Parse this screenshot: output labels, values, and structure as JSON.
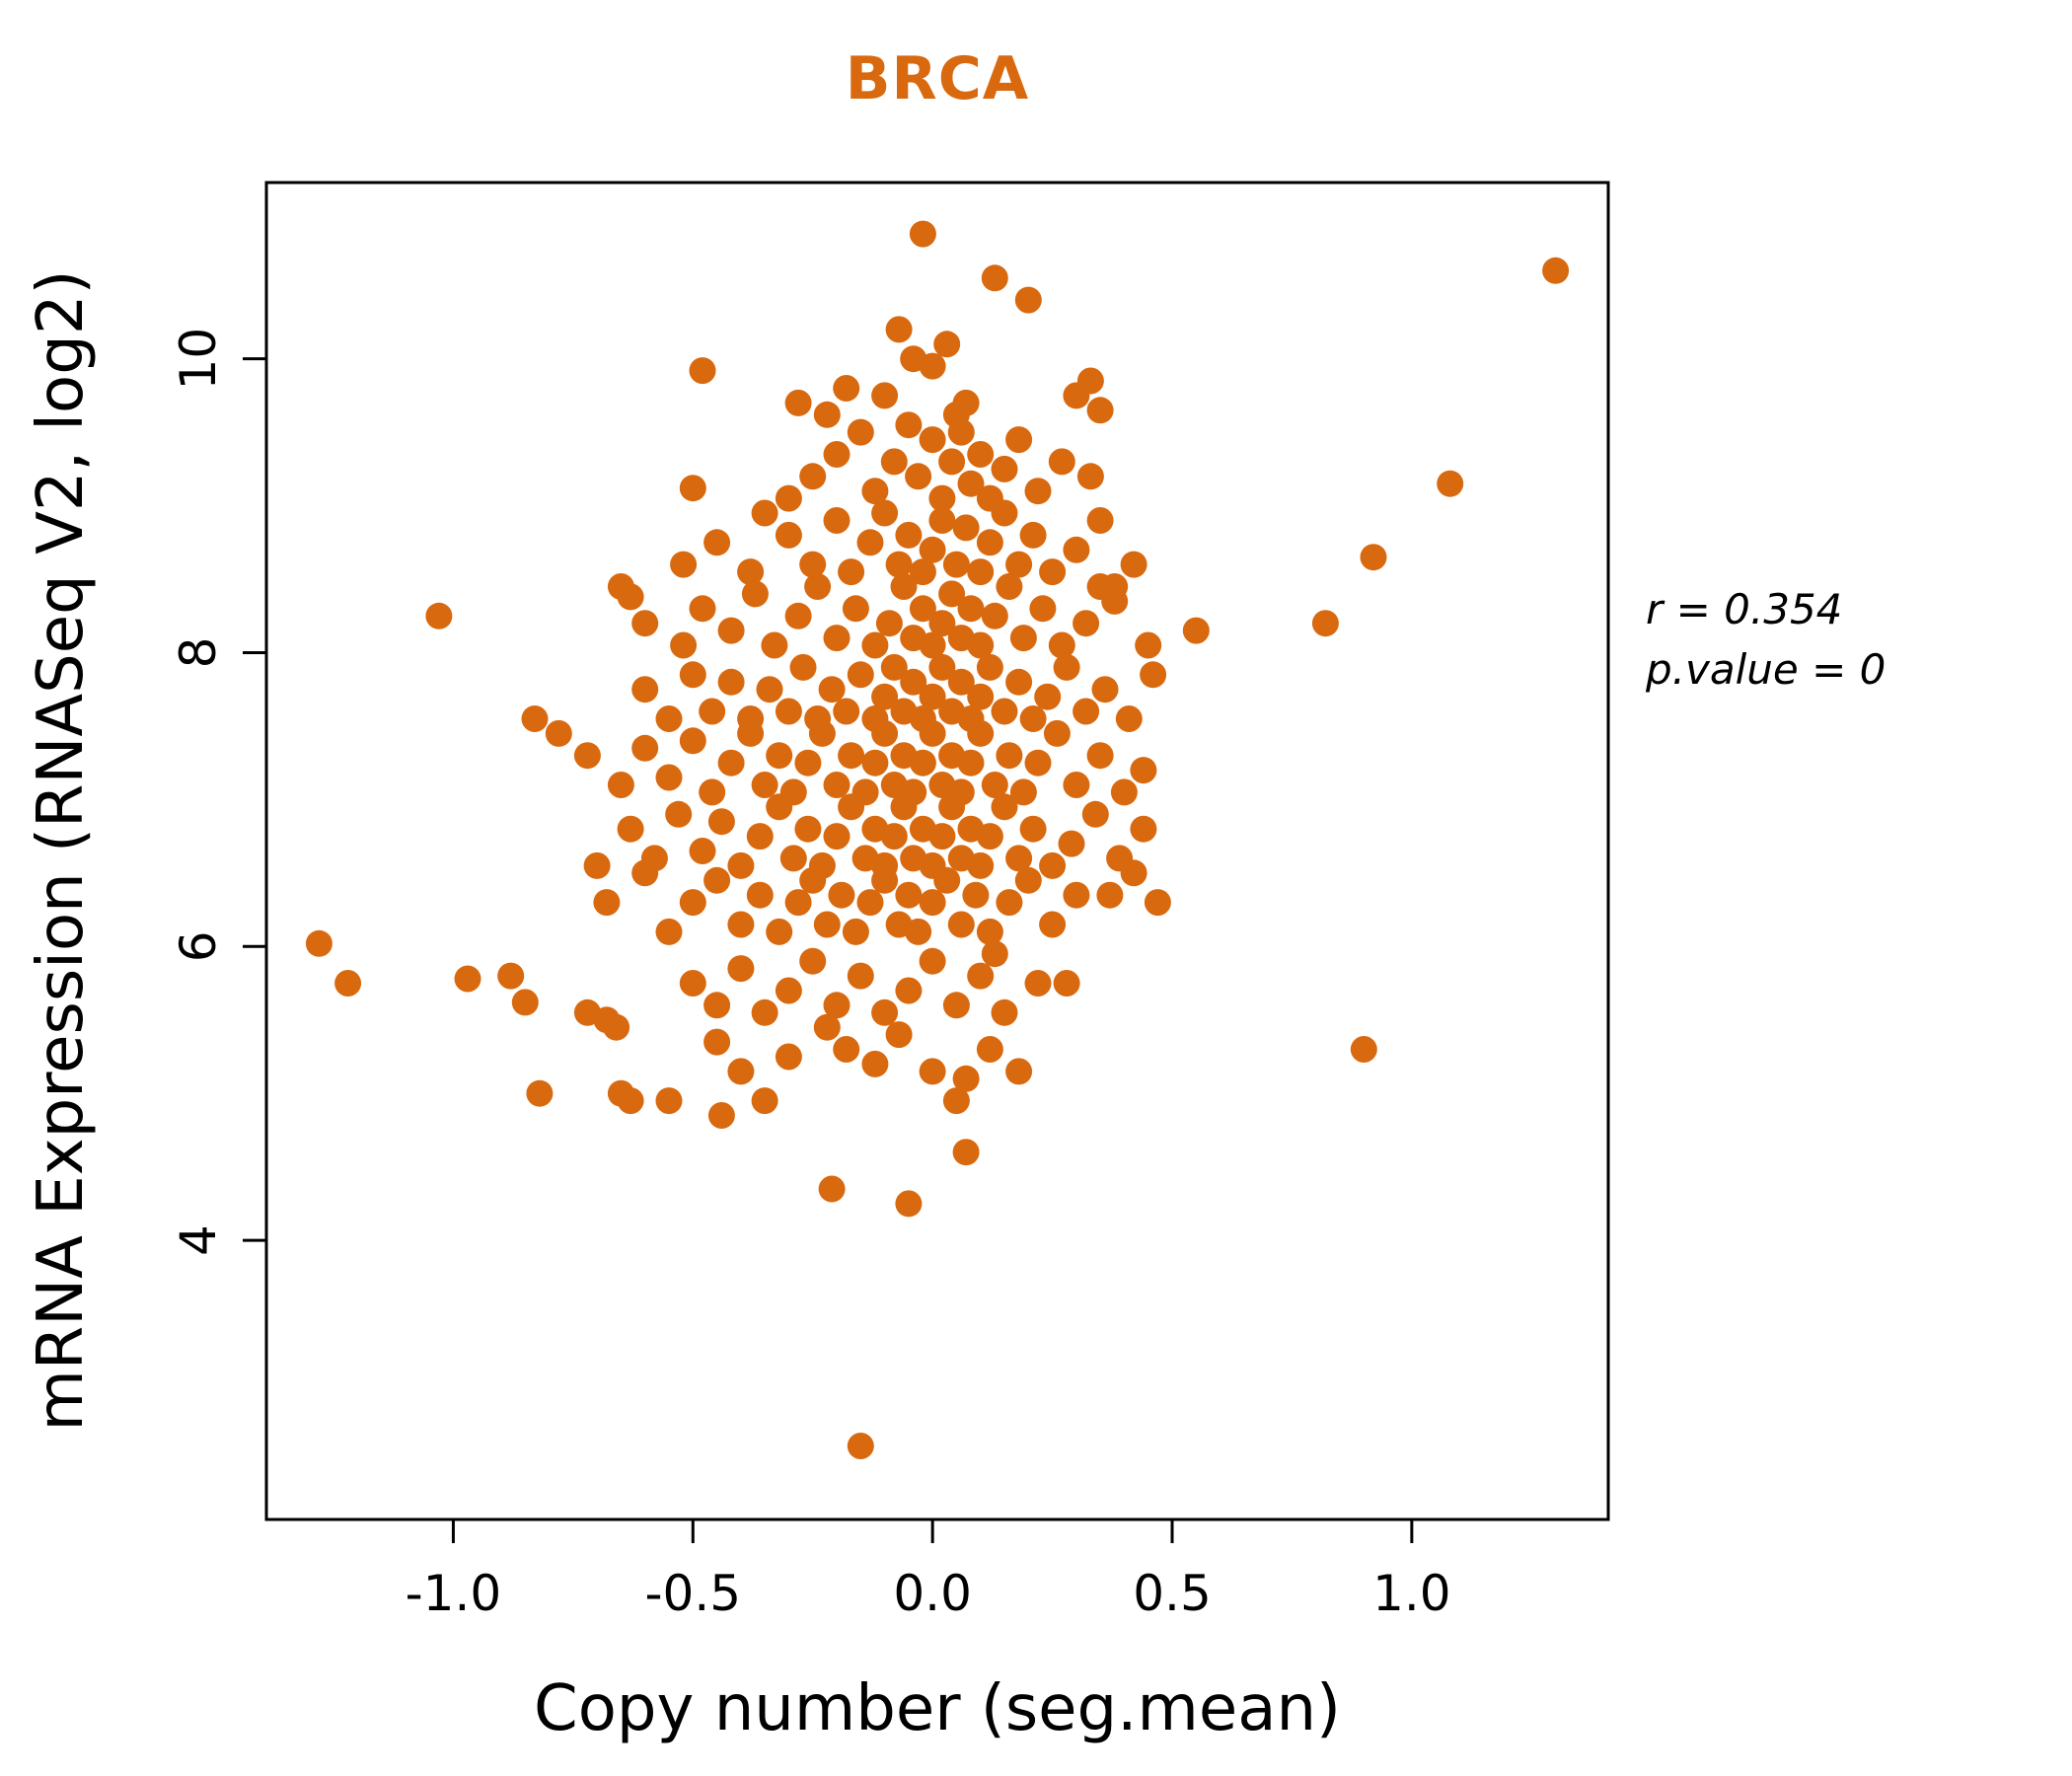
{
  "colors": {
    "accent": "#D9690F",
    "axis": "#000000",
    "background": "#ffffff"
  },
  "annotation": {
    "r_text": "r = 0.354",
    "p_text": "p.value = 0"
  },
  "chart_data": {
    "type": "scatter",
    "title": "BRCA",
    "xlabel": "Copy number (seg.mean)",
    "ylabel": "mRNA Expression (RNASeq V2, log2)",
    "xlim": [
      -1.39,
      1.41
    ],
    "ylim": [
      2.1,
      11.2
    ],
    "x_ticks": [
      -1.0,
      -0.5,
      0.0,
      0.5,
      1.0
    ],
    "x_tick_labels": [
      "-1.0",
      "-0.5",
      "0.0",
      "0.5",
      "1.0"
    ],
    "y_ticks": [
      4,
      6,
      8,
      10
    ],
    "y_tick_labels": [
      "4",
      "6",
      "8",
      "10"
    ],
    "grid": false,
    "legend": "none",
    "point_color": "#D9690F",
    "points": [
      [
        -0.02,
        10.85
      ],
      [
        0.13,
        10.55
      ],
      [
        0.2,
        10.4
      ],
      [
        1.3,
        10.6
      ],
      [
        -0.48,
        9.92
      ],
      [
        -0.07,
        10.2
      ],
      [
        0.03,
        10.1
      ],
      [
        -0.04,
        10.0
      ],
      [
        0.0,
        9.95
      ],
      [
        -0.18,
        9.8
      ],
      [
        -0.1,
        9.75
      ],
      [
        0.07,
        9.7
      ],
      [
        0.3,
        9.75
      ],
      [
        -0.22,
        9.62
      ],
      [
        0.05,
        9.62
      ],
      [
        0.35,
        9.65
      ],
      [
        -0.28,
        9.7
      ],
      [
        0.33,
        9.85
      ],
      [
        1.08,
        9.15
      ],
      [
        -0.3,
        9.05
      ],
      [
        -0.25,
        9.2
      ],
      [
        -0.2,
        9.35
      ],
      [
        -0.15,
        9.5
      ],
      [
        -0.12,
        9.1
      ],
      [
        -0.08,
        9.3
      ],
      [
        -0.05,
        9.55
      ],
      [
        -0.03,
        9.2
      ],
      [
        0.0,
        9.45
      ],
      [
        0.02,
        9.05
      ],
      [
        0.04,
        9.3
      ],
      [
        0.06,
        9.5
      ],
      [
        0.08,
        9.15
      ],
      [
        0.1,
        9.35
      ],
      [
        0.12,
        9.05
      ],
      [
        0.15,
        9.25
      ],
      [
        0.18,
        9.45
      ],
      [
        0.22,
        9.1
      ],
      [
        0.27,
        9.3
      ],
      [
        0.33,
        9.2
      ],
      [
        -0.35,
        8.95
      ],
      [
        -0.5,
        9.12
      ],
      [
        -0.52,
        8.6
      ],
      [
        -0.45,
        8.75
      ],
      [
        -0.38,
        8.55
      ],
      [
        -0.3,
        8.8
      ],
      [
        -0.25,
        8.6
      ],
      [
        -0.2,
        8.9
      ],
      [
        -0.17,
        8.55
      ],
      [
        -0.13,
        8.75
      ],
      [
        -0.1,
        8.95
      ],
      [
        -0.07,
        8.6
      ],
      [
        -0.05,
        8.8
      ],
      [
        -0.02,
        8.55
      ],
      [
        0.0,
        8.7
      ],
      [
        0.02,
        8.9
      ],
      [
        0.05,
        8.6
      ],
      [
        0.07,
        8.85
      ],
      [
        0.1,
        8.55
      ],
      [
        0.12,
        8.75
      ],
      [
        0.15,
        8.95
      ],
      [
        0.18,
        8.6
      ],
      [
        0.21,
        8.8
      ],
      [
        0.25,
        8.55
      ],
      [
        0.3,
        8.7
      ],
      [
        0.35,
        8.9
      ],
      [
        0.42,
        8.6
      ],
      [
        0.38,
        8.45
      ],
      [
        0.92,
        8.65
      ],
      [
        -0.65,
        8.45
      ],
      [
        -0.63,
        8.38
      ],
      [
        -0.6,
        8.2
      ],
      [
        -0.52,
        8.05
      ],
      [
        -0.48,
        8.3
      ],
      [
        -0.42,
        8.15
      ],
      [
        -0.37,
        8.4
      ],
      [
        -0.33,
        8.05
      ],
      [
        -0.28,
        8.25
      ],
      [
        -0.24,
        8.45
      ],
      [
        -0.2,
        8.1
      ],
      [
        -0.16,
        8.3
      ],
      [
        -0.12,
        8.05
      ],
      [
        -0.09,
        8.2
      ],
      [
        -0.06,
        8.45
      ],
      [
        -0.04,
        8.1
      ],
      [
        -0.02,
        8.3
      ],
      [
        0.0,
        8.05
      ],
      [
        0.02,
        8.2
      ],
      [
        0.04,
        8.4
      ],
      [
        0.06,
        8.1
      ],
      [
        0.08,
        8.3
      ],
      [
        0.1,
        8.05
      ],
      [
        0.13,
        8.25
      ],
      [
        0.16,
        8.45
      ],
      [
        0.19,
        8.1
      ],
      [
        0.23,
        8.3
      ],
      [
        0.27,
        8.05
      ],
      [
        0.32,
        8.2
      ],
      [
        0.38,
        8.35
      ],
      [
        0.45,
        8.05
      ],
      [
        0.55,
        8.15
      ],
      [
        0.35,
        8.45
      ],
      [
        0.82,
        8.2
      ],
      [
        -1.03,
        8.25
      ],
      [
        -0.83,
        7.55
      ],
      [
        -0.6,
        7.75
      ],
      [
        -0.55,
        7.55
      ],
      [
        -0.5,
        7.85
      ],
      [
        -0.46,
        7.6
      ],
      [
        -0.42,
        7.8
      ],
      [
        -0.38,
        7.55
      ],
      [
        -0.34,
        7.75
      ],
      [
        -0.3,
        7.6
      ],
      [
        -0.27,
        7.9
      ],
      [
        -0.24,
        7.55
      ],
      [
        -0.21,
        7.75
      ],
      [
        -0.18,
        7.6
      ],
      [
        -0.15,
        7.85
      ],
      [
        -0.12,
        7.55
      ],
      [
        -0.1,
        7.7
      ],
      [
        -0.08,
        7.9
      ],
      [
        -0.06,
        7.6
      ],
      [
        -0.04,
        7.8
      ],
      [
        -0.02,
        7.55
      ],
      [
        0.0,
        7.7
      ],
      [
        0.02,
        7.9
      ],
      [
        0.04,
        7.6
      ],
      [
        0.06,
        7.8
      ],
      [
        0.08,
        7.55
      ],
      [
        0.1,
        7.7
      ],
      [
        0.12,
        7.9
      ],
      [
        0.15,
        7.6
      ],
      [
        0.18,
        7.8
      ],
      [
        0.21,
        7.55
      ],
      [
        0.24,
        7.7
      ],
      [
        0.28,
        7.9
      ],
      [
        0.32,
        7.6
      ],
      [
        0.36,
        7.75
      ],
      [
        0.41,
        7.55
      ],
      [
        0.46,
        7.85
      ],
      [
        -0.78,
        7.45
      ],
      [
        -0.72,
        7.3
      ],
      [
        -0.65,
        7.1
      ],
      [
        -0.6,
        7.35
      ],
      [
        -0.55,
        7.15
      ],
      [
        -0.5,
        7.4
      ],
      [
        -0.46,
        7.05
      ],
      [
        -0.42,
        7.25
      ],
      [
        -0.38,
        7.45
      ],
      [
        -0.35,
        7.1
      ],
      [
        -0.32,
        7.3
      ],
      [
        -0.29,
        7.05
      ],
      [
        -0.26,
        7.25
      ],
      [
        -0.23,
        7.45
      ],
      [
        -0.2,
        7.1
      ],
      [
        -0.17,
        7.3
      ],
      [
        -0.14,
        7.05
      ],
      [
        -0.12,
        7.25
      ],
      [
        -0.1,
        7.45
      ],
      [
        -0.08,
        7.1
      ],
      [
        -0.06,
        7.3
      ],
      [
        -0.04,
        7.05
      ],
      [
        -0.02,
        7.25
      ],
      [
        0.0,
        7.45
      ],
      [
        0.02,
        7.1
      ],
      [
        0.04,
        7.3
      ],
      [
        0.06,
        7.05
      ],
      [
        0.08,
        7.25
      ],
      [
        0.1,
        7.45
      ],
      [
        0.13,
        7.1
      ],
      [
        0.16,
        7.3
      ],
      [
        0.19,
        7.05
      ],
      [
        0.22,
        7.25
      ],
      [
        0.26,
        7.45
      ],
      [
        0.3,
        7.1
      ],
      [
        0.35,
        7.3
      ],
      [
        0.4,
        7.05
      ],
      [
        0.44,
        7.2
      ],
      [
        -0.7,
        6.55
      ],
      [
        -0.63,
        6.8
      ],
      [
        -0.58,
        6.6
      ],
      [
        -0.53,
        6.9
      ],
      [
        -0.48,
        6.65
      ],
      [
        -0.44,
        6.85
      ],
      [
        -0.4,
        6.55
      ],
      [
        -0.36,
        6.75
      ],
      [
        -0.32,
        6.95
      ],
      [
        -0.29,
        6.6
      ],
      [
        -0.26,
        6.8
      ],
      [
        -0.23,
        6.55
      ],
      [
        -0.2,
        6.75
      ],
      [
        -0.17,
        6.95
      ],
      [
        -0.14,
        6.6
      ],
      [
        -0.12,
        6.8
      ],
      [
        -0.1,
        6.55
      ],
      [
        -0.08,
        6.75
      ],
      [
        -0.06,
        6.95
      ],
      [
        -0.04,
        6.6
      ],
      [
        -0.02,
        6.8
      ],
      [
        0.0,
        6.55
      ],
      [
        0.02,
        6.75
      ],
      [
        0.04,
        6.95
      ],
      [
        0.06,
        6.6
      ],
      [
        0.08,
        6.8
      ],
      [
        0.1,
        6.55
      ],
      [
        0.12,
        6.75
      ],
      [
        0.15,
        6.95
      ],
      [
        0.18,
        6.6
      ],
      [
        0.21,
        6.8
      ],
      [
        0.25,
        6.55
      ],
      [
        0.29,
        6.7
      ],
      [
        0.34,
        6.9
      ],
      [
        0.39,
        6.6
      ],
      [
        0.44,
        6.8
      ],
      [
        -0.68,
        6.3
      ],
      [
        -0.6,
        6.5
      ],
      [
        -0.55,
        6.1
      ],
      [
        -0.5,
        6.3
      ],
      [
        -0.45,
        6.45
      ],
      [
        -0.4,
        6.15
      ],
      [
        -0.36,
        6.35
      ],
      [
        -0.32,
        6.1
      ],
      [
        -0.28,
        6.3
      ],
      [
        -0.25,
        6.45
      ],
      [
        -0.22,
        6.15
      ],
      [
        -0.19,
        6.35
      ],
      [
        -0.16,
        6.1
      ],
      [
        -0.13,
        6.3
      ],
      [
        -0.1,
        6.45
      ],
      [
        -0.07,
        6.15
      ],
      [
        -0.05,
        6.35
      ],
      [
        -0.03,
        6.1
      ],
      [
        0.0,
        6.3
      ],
      [
        0.03,
        6.45
      ],
      [
        0.06,
        6.15
      ],
      [
        0.09,
        6.35
      ],
      [
        0.12,
        6.1
      ],
      [
        0.16,
        6.3
      ],
      [
        0.2,
        6.45
      ],
      [
        0.25,
        6.15
      ],
      [
        0.3,
        6.35
      ],
      [
        0.37,
        6.35
      ],
      [
        0.42,
        6.5
      ],
      [
        0.47,
        6.3
      ],
      [
        -1.28,
        6.02
      ],
      [
        -1.22,
        5.75
      ],
      [
        -0.97,
        5.78
      ],
      [
        -0.88,
        5.8
      ],
      [
        -0.85,
        5.62
      ],
      [
        -0.72,
        5.55
      ],
      [
        -0.68,
        5.5
      ],
      [
        -0.66,
        5.45
      ],
      [
        -0.5,
        5.75
      ],
      [
        -0.45,
        5.6
      ],
      [
        -0.4,
        5.85
      ],
      [
        -0.35,
        5.55
      ],
      [
        -0.3,
        5.7
      ],
      [
        -0.25,
        5.9
      ],
      [
        -0.2,
        5.6
      ],
      [
        -0.15,
        5.8
      ],
      [
        -0.1,
        5.55
      ],
      [
        -0.05,
        5.7
      ],
      [
        0.0,
        5.9
      ],
      [
        0.05,
        5.6
      ],
      [
        0.1,
        5.8
      ],
      [
        0.15,
        5.55
      ],
      [
        0.22,
        5.75
      ],
      [
        0.28,
        5.75
      ],
      [
        0.13,
        5.95
      ],
      [
        -0.82,
        5.0
      ],
      [
        -0.65,
        5.0
      ],
      [
        -0.63,
        4.95
      ],
      [
        -0.55,
        4.95
      ],
      [
        -0.45,
        5.35
      ],
      [
        -0.4,
        5.15
      ],
      [
        -0.35,
        4.95
      ],
      [
        -0.3,
        5.25
      ],
      [
        -0.22,
        5.45
      ],
      [
        -0.18,
        5.3
      ],
      [
        -0.12,
        5.2
      ],
      [
        -0.07,
        5.4
      ],
      [
        0.0,
        5.15
      ],
      [
        0.05,
        4.95
      ],
      [
        0.07,
        5.1
      ],
      [
        0.12,
        5.3
      ],
      [
        0.18,
        5.15
      ],
      [
        0.9,
        5.3
      ],
      [
        -0.44,
        4.85
      ],
      [
        -0.21,
        4.35
      ],
      [
        -0.05,
        4.25
      ],
      [
        0.07,
        4.6
      ],
      [
        -0.15,
        2.6
      ]
    ]
  }
}
